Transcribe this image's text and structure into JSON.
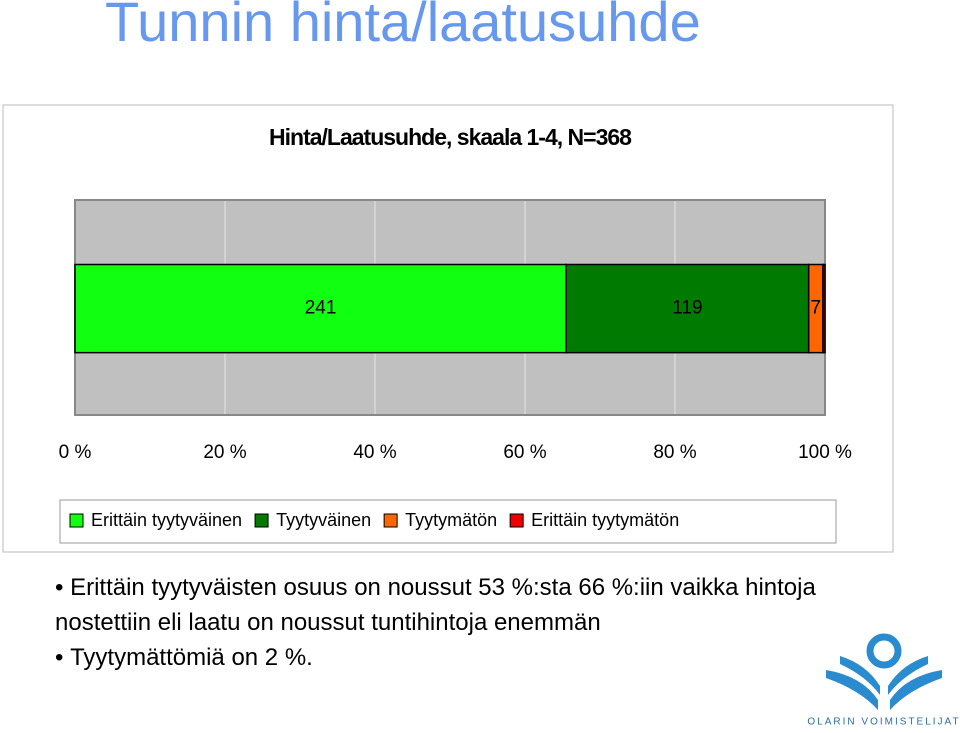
{
  "title": "Tunnin hinta/laatusuhde",
  "chart_data": {
    "type": "bar",
    "orientation": "horizontal",
    "stacking": "percent",
    "title": "Hinta/Laatusuhde, skaala 1-4, N=368",
    "categories": [
      null
    ],
    "series": [
      {
        "name": "Erittäin tyytyväinen",
        "color": "#11ff11",
        "values": [
          241
        ]
      },
      {
        "name": "Tyytyväinen",
        "color": "#007a00",
        "values": [
          119
        ]
      },
      {
        "name": "Tyytymätön",
        "color": "#ff6600",
        "values": [
          7
        ]
      },
      {
        "name": "Erittäin tyytymätön",
        "color": "#ee0000",
        "values": [
          1
        ]
      }
    ],
    "xlim": [
      0,
      100
    ],
    "xticks": [
      {
        "value": 0,
        "label": "0 %"
      },
      {
        "value": 20,
        "label": "20 %"
      },
      {
        "value": 40,
        "label": "40 %"
      },
      {
        "value": 60,
        "label": "60 %"
      },
      {
        "value": 80,
        "label": "80 %"
      },
      {
        "value": 100,
        "label": "100 %"
      }
    ],
    "grid": true,
    "legend": "bottom"
  },
  "bullets": [
    "Erittäin tyytyväisten osuus on noussut 53 %:sta 66 %:iin vaikka hintoja nostettiin eli laatu on noussut tuntihintoja enemmän",
    "Tyytymättömiä on 2 %."
  ],
  "logo": {
    "text": "OLARIN VOIMISTELIJAT"
  }
}
